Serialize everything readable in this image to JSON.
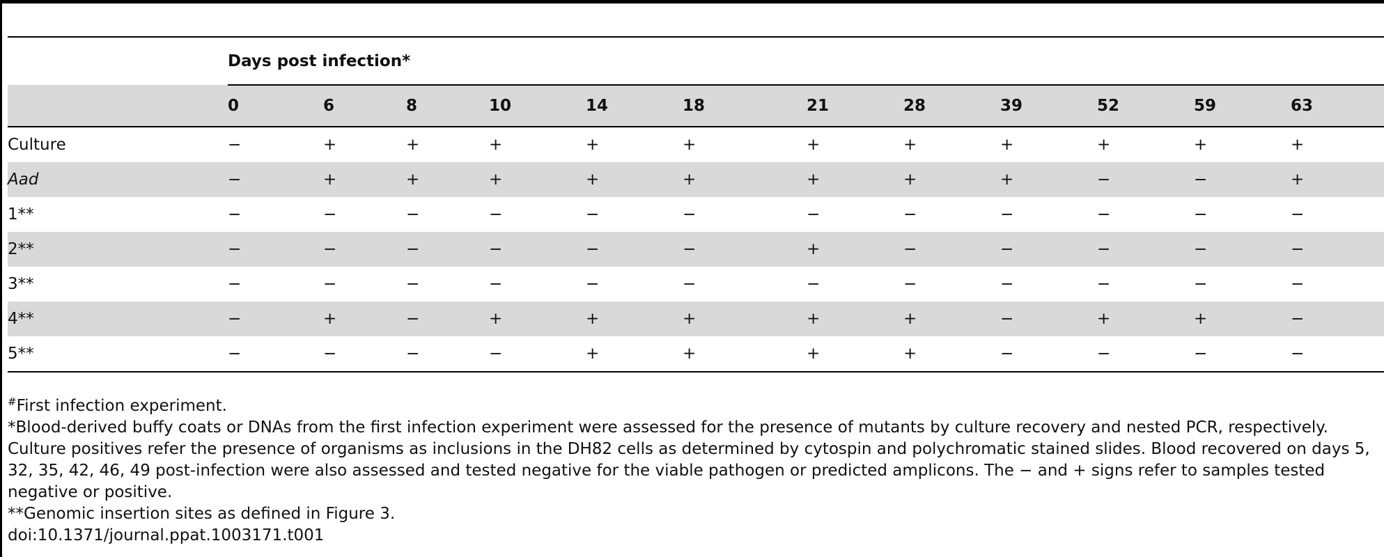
{
  "table": {
    "group_header": "Days post infection*",
    "days": [
      "0",
      "6",
      "8",
      "10",
      "14",
      "18",
      "21",
      "28",
      "39",
      "52",
      "59",
      "63"
    ],
    "rows": [
      {
        "label": "Culture",
        "italic": false,
        "values": [
          "−",
          "+",
          "+",
          "+",
          "+",
          "+",
          "+",
          "+",
          "+",
          "+",
          "+",
          "+"
        ]
      },
      {
        "label": "Aad",
        "italic": true,
        "values": [
          "−",
          "+",
          "+",
          "+",
          "+",
          "+",
          "+",
          "+",
          "+",
          "−",
          "−",
          "+"
        ]
      },
      {
        "label": "1**",
        "italic": false,
        "values": [
          "−",
          "−",
          "−",
          "−",
          "−",
          "−",
          "−",
          "−",
          "−",
          "−",
          "−",
          "−"
        ]
      },
      {
        "label": "2**",
        "italic": false,
        "values": [
          "−",
          "−",
          "−",
          "−",
          "−",
          "−",
          "+",
          "−",
          "−",
          "−",
          "−",
          "−"
        ]
      },
      {
        "label": "3**",
        "italic": false,
        "values": [
          "−",
          "−",
          "−",
          "−",
          "−",
          "−",
          "−",
          "−",
          "−",
          "−",
          "−",
          "−"
        ]
      },
      {
        "label": "4**",
        "italic": false,
        "values": [
          "−",
          "+",
          "−",
          "+",
          "+",
          "+",
          "+",
          "+",
          "−",
          "+",
          "+",
          "−"
        ]
      },
      {
        "label": "5**",
        "italic": false,
        "values": [
          "−",
          "−",
          "−",
          "−",
          "+",
          "+",
          "+",
          "+",
          "−",
          "−",
          "−",
          "−"
        ]
      }
    ]
  },
  "footnotes": {
    "hash_symbol": "#",
    "hash_note": "First infection experiment.",
    "star_note": "*Blood-derived buffy coats or DNAs from the first infection experiment were assessed for the presence of mutants by culture recovery and nested PCR, respectively. Culture positives refer the presence of organisms as inclusions in the DH82 cells as determined by cytospin and polychromatic stained slides. Blood recovered on days 5, 32, 35, 42, 46, 49 post-infection were also assessed and tested negative for the viable pathogen or predicted amplicons. The − and + signs refer to samples tested negative or positive.",
    "double_star_note": "**Genomic insertion sites as defined in Figure 3.",
    "doi": "doi:10.1371/journal.ppat.1003171.t001"
  }
}
